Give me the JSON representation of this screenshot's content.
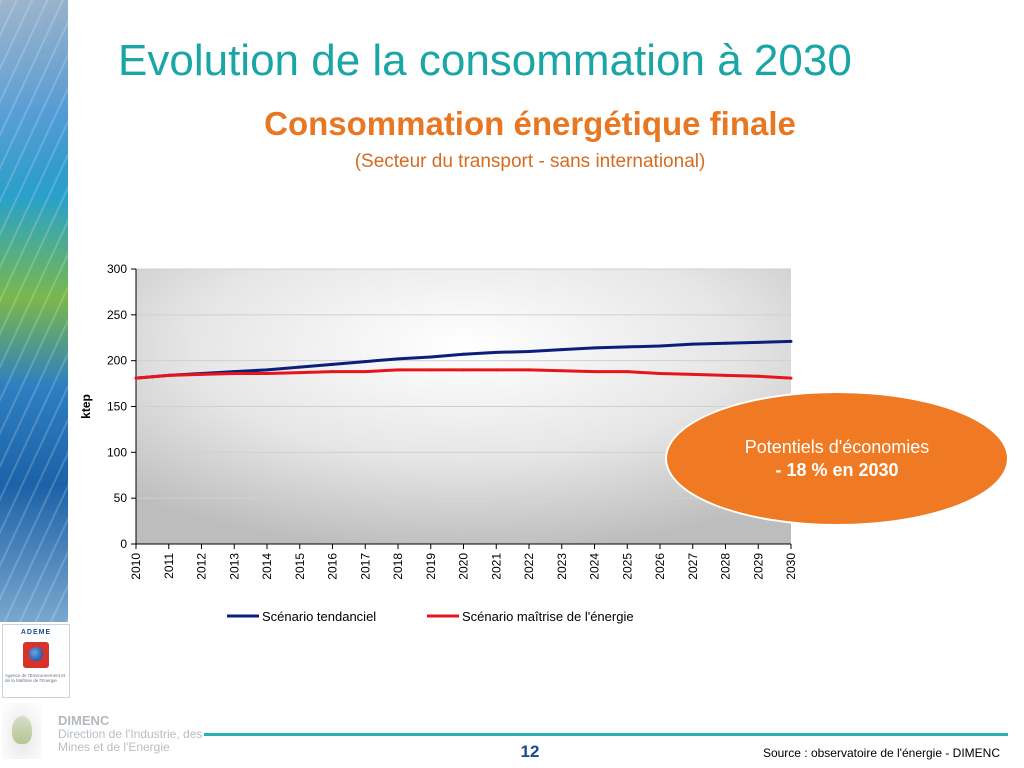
{
  "header": {
    "title": "Evolution de la consommation à 2030",
    "subtitle": "Consommation énergétique finale",
    "subtitle2": "(Secteur du transport - sans international)"
  },
  "callout": {
    "line1": "Potentiels d'économies",
    "line2": "- 18 % en 2030",
    "color": "#f07a23"
  },
  "footer": {
    "page_number": "12",
    "source": "Source : observatoire de l'énergie - DIMENC",
    "ademe_label": "ADEME",
    "ademe_caption": "Agence de l'Environnement et de la Maîtrise de l'Energie",
    "dimenc_title": "DIMENC",
    "dimenc_sub": "Direction de l'Industrie, des Mines et de l'Energie"
  },
  "chart_data": {
    "type": "line",
    "categories": [
      "2010",
      "2011",
      "2012",
      "2013",
      "2014",
      "2015",
      "2016",
      "2017",
      "2018",
      "2019",
      "2020",
      "2021",
      "2022",
      "2023",
      "2024",
      "2025",
      "2026",
      "2027",
      "2028",
      "2029",
      "2030"
    ],
    "ylabel": "ktep",
    "ylim": [
      0,
      300
    ],
    "yticks": [
      0,
      50,
      100,
      150,
      200,
      250,
      300
    ],
    "grid": true,
    "legend_position": "bottom",
    "series": [
      {
        "name": "Scénario tendanciel",
        "color": "#0b1f7a",
        "values": [
          181,
          184,
          186,
          188,
          190,
          193,
          196,
          199,
          202,
          204,
          207,
          209,
          210,
          212,
          214,
          215,
          216,
          218,
          219,
          220,
          221
        ]
      },
      {
        "name": "Scénario maîtrise de l'énergie",
        "color": "#e8141b",
        "values": [
          181,
          184,
          185,
          186,
          186,
          187,
          188,
          188,
          190,
          190,
          190,
          190,
          190,
          189,
          188,
          188,
          186,
          185,
          184,
          183,
          181
        ]
      }
    ]
  }
}
